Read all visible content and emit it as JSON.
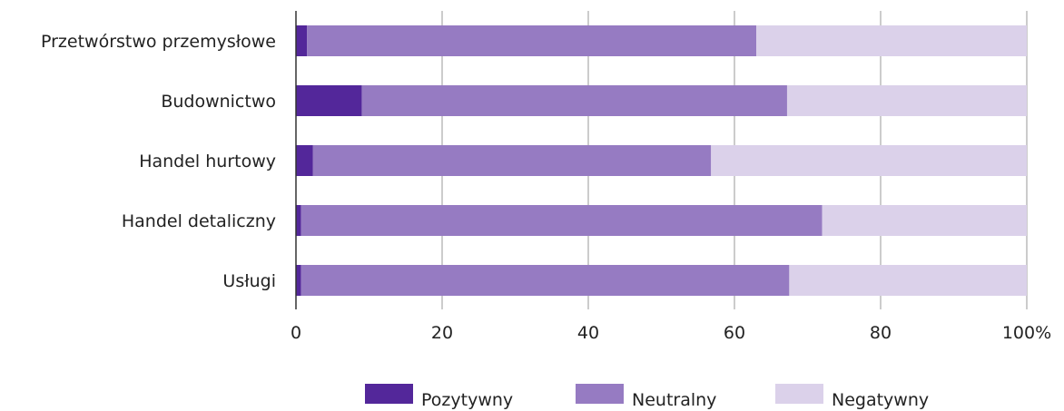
{
  "chart_data": {
    "type": "bar",
    "orientation": "horizontal",
    "stacked": true,
    "categories": [
      "Przetwórstwo przemysłowe",
      "Budownictwo",
      "Handel hurtowy",
      "Handel detaliczny",
      "Usługi"
    ],
    "series": [
      {
        "name": "Pozytywny",
        "color": "#53279a",
        "values": [
          1.5,
          9.0,
          2.3,
          0.7,
          0.7
        ]
      },
      {
        "name": "Neutralny",
        "color": "#967bc2",
        "values": [
          61.5,
          58.2,
          54.5,
          71.3,
          66.8
        ]
      },
      {
        "name": "Negatywny",
        "color": "#dbd1ea",
        "values": [
          37.0,
          32.8,
          43.2,
          28.0,
          32.5
        ]
      }
    ],
    "xlim": [
      0,
      100
    ],
    "xticks": [
      "0",
      "20",
      "40",
      "60",
      "80",
      "100%"
    ],
    "grid": true,
    "legend_position": "bottom"
  }
}
